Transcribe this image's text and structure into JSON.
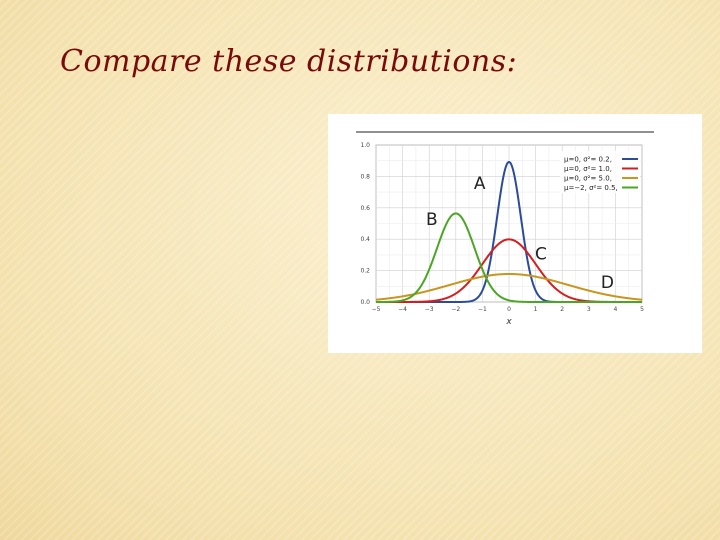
{
  "slide": {
    "title": "Compare these distributions:"
  },
  "chart_data": {
    "type": "line",
    "xlabel": "x",
    "ylabel": "",
    "xlim": [
      -5,
      5
    ],
    "ylim": [
      0,
      1.0
    ],
    "xticks": [
      "−5",
      "−4",
      "−3",
      "−2",
      "−1",
      "0",
      "1",
      "2",
      "3",
      "4",
      "5"
    ],
    "yticks": [
      "0.0",
      "0.2",
      "0.4",
      "0.6",
      "0.8",
      "1.0"
    ],
    "grid": true,
    "legend_position": "top-right",
    "series": [
      {
        "name": "μ=0,   σ²= 0.2,",
        "mu": 0,
        "variance": 0.2,
        "color": "#2b4c9a"
      },
      {
        "name": "μ=0,   σ²= 1.0,",
        "mu": 0,
        "variance": 1.0,
        "color": "#d21f1f"
      },
      {
        "name": "μ=0,   σ²= 5.0,",
        "mu": 0,
        "variance": 5.0,
        "color": "#c8961e"
      },
      {
        "name": "μ=−2, σ²= 0.5,",
        "mu": -2,
        "variance": 0.5,
        "color": "#4ca626"
      }
    ],
    "annotations": [
      {
        "text": "A",
        "x": -1.1,
        "y": 0.72
      },
      {
        "text": "B",
        "x": -2.9,
        "y": 0.49
      },
      {
        "text": "C",
        "x": 1.2,
        "y": 0.27
      },
      {
        "text": "D",
        "x": 3.7,
        "y": 0.09
      }
    ]
  }
}
